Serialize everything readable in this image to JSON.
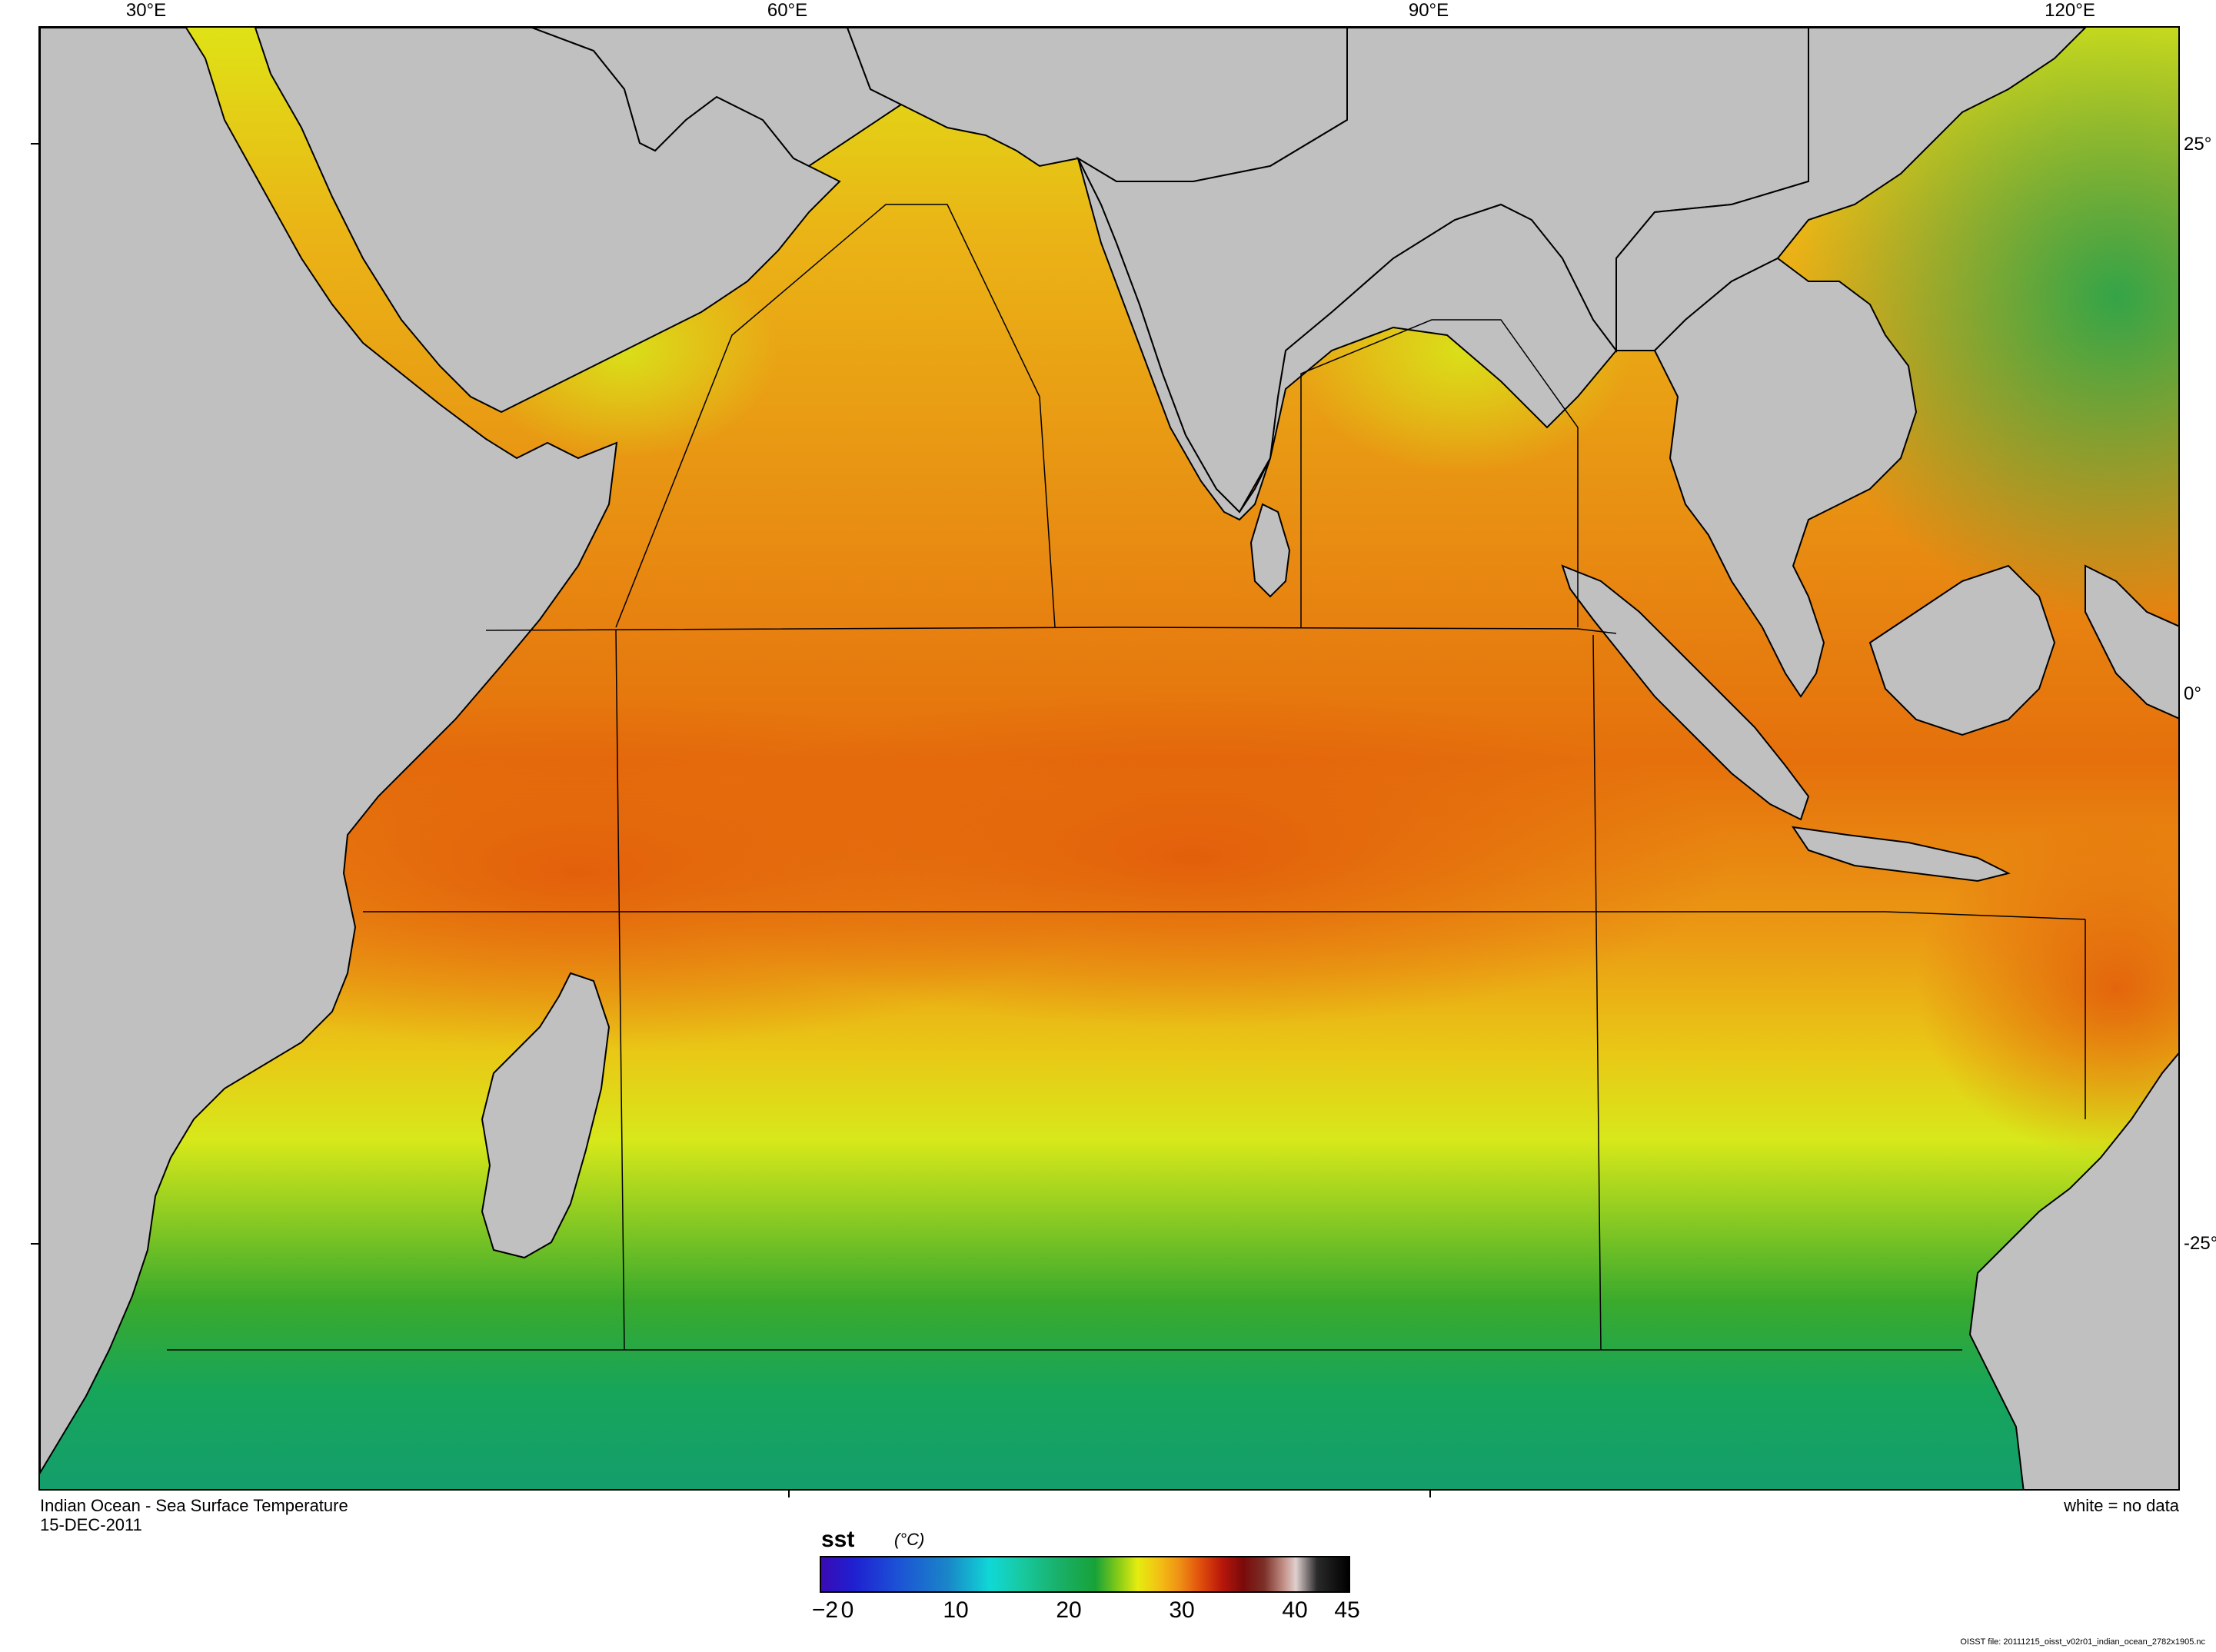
{
  "map": {
    "title": "Indian Ocean - Sea Surface Temperature",
    "date": "15-DEC-2011",
    "no_data_note": "white = no data",
    "lon_labels": [
      "30°E",
      "60°E",
      "90°E",
      "120°E"
    ],
    "lat_labels": [
      "25°",
      "0°",
      "-25°"
    ],
    "colors": {
      "land": "#c0c0c0",
      "cold_water": "#16a968",
      "cool_water": "#2fb32a",
      "mild_water": "#dbe81a",
      "warm_water": "#eda414",
      "hot_water": "#e0670c",
      "boundary": "#000000"
    }
  },
  "colorbar": {
    "variable": "sst",
    "unit": "(°C)",
    "ticks": [
      "−2",
      "0",
      "10",
      "20",
      "30",
      "40",
      "45"
    ]
  },
  "file_note": "OISST file: 20111215_oisst_v02r01_indian_ocean_2782x1905.nc"
}
